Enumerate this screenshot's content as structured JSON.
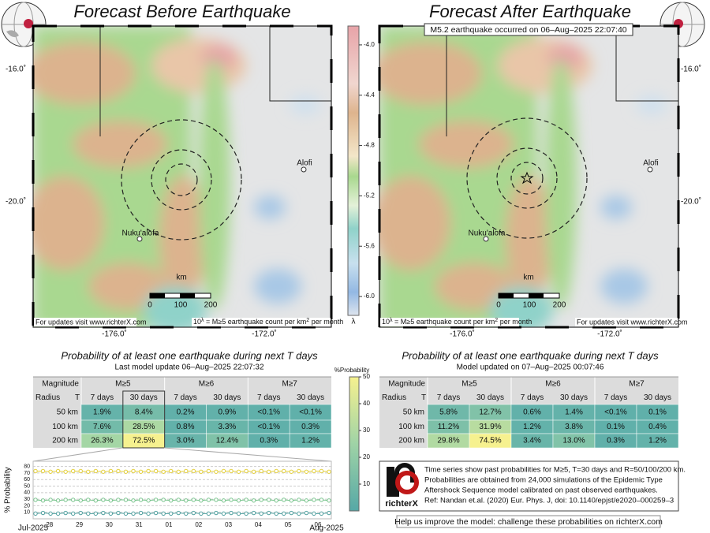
{
  "left_panel": {
    "title": "Forecast Before Earthquake",
    "lat_labels": [
      "-16.0˚",
      "-20.0˚"
    ],
    "lon_labels": [
      "-176.0˚",
      "-172.0˚"
    ],
    "places": [
      "Alofi",
      "Nuku'alofa"
    ],
    "scale": {
      "unit": "km",
      "ticks": [
        0,
        100,
        200
      ]
    },
    "footer_link": "For updates visit www.richterX.com",
    "footer_legend": {
      "base": "10",
      "exp": "λ",
      "text": " = M≥5 earthquake count per km",
      "sup": "2",
      "tail": " per month"
    }
  },
  "right_panel": {
    "title": "Forecast After Earthquake",
    "annotation": "M5.2 earthquake occurred on 06–Aug–2025 22:07:40",
    "lat_labels": [
      "-16.0˚",
      "-20.0˚"
    ],
    "lon_labels": [
      "-176.0˚",
      "-172.0˚"
    ],
    "places": [
      "Alofi",
      "Nuku'alofa"
    ],
    "scale": {
      "unit": "km",
      "ticks": [
        0,
        100,
        200
      ]
    },
    "footer_link": "For updates visit www.richterX.com",
    "footer_legend": {
      "base": "10",
      "exp": "λ",
      "text": " = M≥5 earthquake count per km",
      "sup": "2",
      "tail": " per month"
    }
  },
  "colorbar": {
    "ticks": [
      {
        "value": -4.0,
        "label": "-4.0"
      },
      {
        "value": -4.4,
        "label": "-4.4"
      },
      {
        "value": -4.8,
        "label": "-4.8"
      },
      {
        "value": -5.2,
        "label": "-5.2"
      },
      {
        "value": -5.6,
        "label": "-5.6"
      },
      {
        "value": -6.0,
        "label": "-6.0"
      }
    ],
    "label": "λ"
  },
  "prob_colorbar": {
    "label": "%Probability",
    "ticks": [
      10,
      20,
      30,
      40,
      50
    ]
  },
  "left_table": {
    "title": "Probability of at least one earthquake during next T days",
    "update": "Last model update 06–Aug–2025 22:07:32",
    "header": {
      "magnitude": "Magnitude",
      "radius": "Radius",
      "t": "T",
      "magnitudes": [
        "M≥5",
        "M≥6",
        "M≥7"
      ],
      "periods": [
        "7 days",
        "30 days"
      ]
    },
    "rows": [
      {
        "radius": "50 km",
        "cells": [
          "1.9%",
          "8.4%",
          "0.2%",
          "0.9%",
          "<0.1%",
          "<0.1%"
        ]
      },
      {
        "radius": "100 km",
        "cells": [
          "7.6%",
          "28.5%",
          "0.8%",
          "3.3%",
          "<0.1%",
          "0.3%"
        ]
      },
      {
        "radius": "200 km",
        "cells": [
          "26.3%",
          "72.5%",
          "3.0%",
          "12.4%",
          "0.3%",
          "1.2%"
        ]
      }
    ]
  },
  "right_table": {
    "title": "Probability of at least one earthquake during next T days",
    "update": "Model updated on 07–Aug–2025 00:07:46",
    "header": {
      "magnitude": "Magnitude",
      "radius": "Radius",
      "t": "T",
      "magnitudes": [
        "M≥5",
        "M≥6",
        "M≥7"
      ],
      "periods": [
        "7 days",
        "30 days"
      ]
    },
    "rows": [
      {
        "radius": "50 km",
        "cells": [
          "5.8%",
          "12.7%",
          "0.6%",
          "1.4%",
          "<0.1%",
          "0.1%"
        ]
      },
      {
        "radius": "100 km",
        "cells": [
          "11.2%",
          "31.9%",
          "1.2%",
          "3.8%",
          "0.1%",
          "0.4%"
        ]
      },
      {
        "radius": "200 km",
        "cells": [
          "29.8%",
          "74.5%",
          "3.4%",
          "13.0%",
          "0.3%",
          "1.2%"
        ]
      }
    ]
  },
  "chart_data": {
    "type": "line",
    "ylabel": "% Probability",
    "ylim": [
      0,
      88
    ],
    "yticks": [
      10,
      20,
      30,
      40,
      50,
      60,
      70,
      80
    ],
    "xticks": [
      "28",
      "29",
      "30",
      "31",
      "01",
      "02",
      "03",
      "04",
      "05",
      "06"
    ],
    "months": [
      "Jul-2025",
      "Aug-2025"
    ],
    "grid": true,
    "series": [
      {
        "color": "#e3cf3e",
        "values": [
          73,
          73,
          72,
          73,
          72,
          73,
          73,
          72,
          73,
          72,
          73,
          73,
          72,
          73,
          72,
          73,
          73,
          72,
          73,
          72,
          73,
          73,
          72,
          73,
          72,
          73,
          73,
          72,
          73,
          72,
          73,
          72,
          73,
          73,
          72,
          73,
          72,
          73,
          73,
          72
        ]
      },
      {
        "color": "#79c48d",
        "values": [
          29,
          28,
          29,
          28,
          29,
          29,
          28,
          29,
          28,
          29,
          28,
          29,
          29,
          28,
          29,
          28,
          29,
          29,
          28,
          29,
          28,
          29,
          28,
          29,
          29,
          28,
          29,
          28,
          29,
          28,
          29,
          29,
          28,
          29,
          28,
          29,
          28,
          29,
          29,
          28
        ]
      },
      {
        "color": "#4f9f9e",
        "values": [
          8,
          9,
          8,
          8,
          9,
          8,
          9,
          8,
          8,
          9,
          8,
          9,
          8,
          8,
          9,
          8,
          9,
          8,
          8,
          9,
          8,
          9,
          8,
          8,
          9,
          8,
          9,
          8,
          8,
          9,
          8,
          9,
          8,
          8,
          9,
          8,
          9,
          8,
          8,
          9
        ]
      }
    ]
  },
  "info": {
    "lines": [
      "Time series show past probabilities for M≥5, T=30 days and R=50/100/200 km.",
      "Probabilities are obtained from 24,000 simulations of the Epidemic Type",
      "Aftershock Sequence model calibrated on past observed earthquakes.",
      "Ref: Nandan et.al. (2020) Eur. Phys. J, doi: 10.1140/epjst/e2020–000259–3"
    ],
    "logo": "richterX",
    "help": "Help us improve the model: challenge these probabilities on richterX.com"
  }
}
